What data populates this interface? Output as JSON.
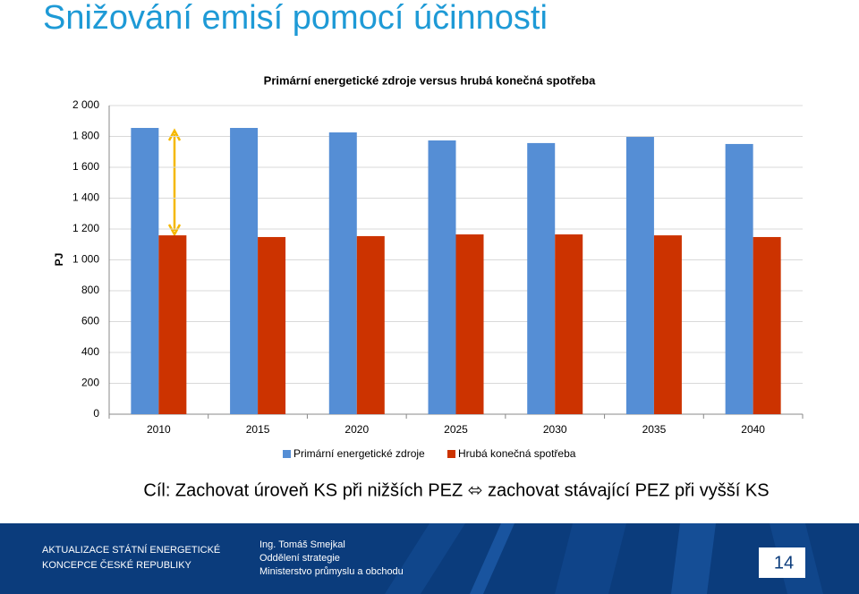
{
  "slide": {
    "title": "Snižování emisí pomocí účinnosti",
    "subtitle": "Cíl: Zachovat úroveň KS při nižších PEZ ⬄ zachovat stávající PEZ při vyšší KS",
    "footer": {
      "left": [
        "AKTUALIZACE STÁTNÍ ENERGETICKÉ",
        "KONCEPCE ČESKÉ REPUBLIKY"
      ],
      "author": [
        "Ing. Tomáš Smejkal",
        "Oddělení strategie",
        "Ministerstvo průmyslu a obchodu"
      ],
      "page": "14"
    }
  },
  "chart_data": {
    "type": "bar",
    "title": "Primární energetické zdroje versus hrubá konečná spotřeba",
    "y_label": "PJ",
    "categories": [
      "2010",
      "2015",
      "2020",
      "2025",
      "2030",
      "2035",
      "2040"
    ],
    "series": [
      {
        "name": "Primární energetické zdroje",
        "color": "#558ed5",
        "values": [
          1855,
          1855,
          1826,
          1774,
          1757,
          1797,
          1751
        ]
      },
      {
        "name": "Hrubá konečná spotřeba",
        "color": "#cc3300",
        "values": [
          1159,
          1148,
          1154,
          1165,
          1165,
          1159,
          1148
        ]
      }
    ],
    "ylim": [
      0,
      2000
    ],
    "yticks": [
      0,
      200,
      400,
      600,
      800,
      {
        "value": 1000,
        "label": "1 000"
      },
      {
        "value": 1200,
        "label": "1 200"
      },
      {
        "value": 1400,
        "label": "1 400"
      },
      {
        "value": 1600,
        "label": "1 600"
      },
      {
        "value": 1800,
        "label": "1 800"
      },
      {
        "value": 2000,
        "label": "2 000"
      }
    ],
    "grid": true,
    "legend": "bottom"
  }
}
